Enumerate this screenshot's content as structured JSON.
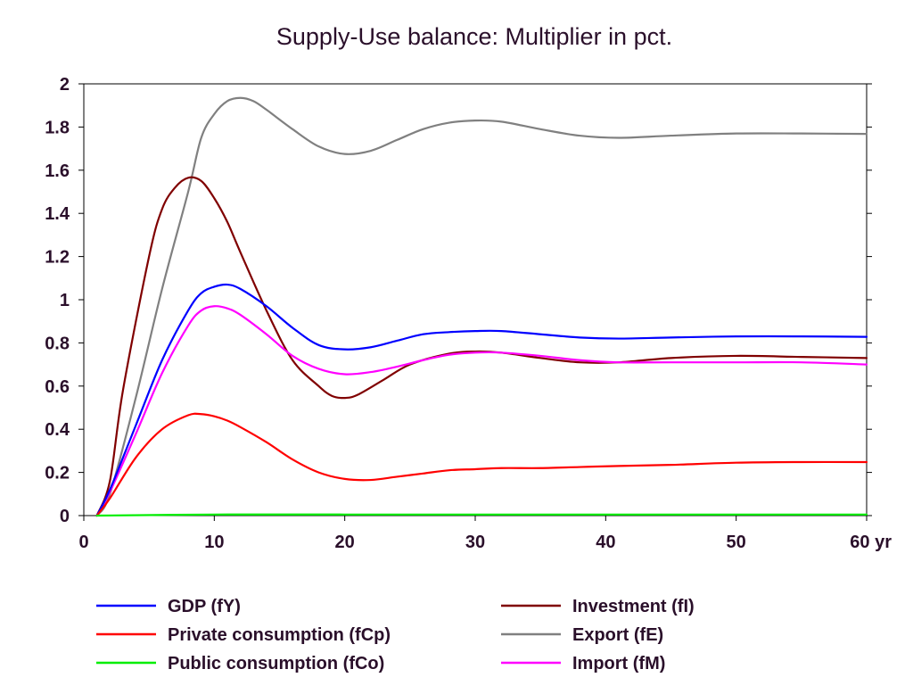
{
  "chart_data": {
    "type": "line",
    "title": "Supply-Use balance: Multiplier in pct.",
    "x_unit_label": "yr",
    "xlim": [
      0,
      60
    ],
    "ylim": [
      0,
      2
    ],
    "x_ticks": [
      0,
      10,
      20,
      30,
      40,
      50,
      60
    ],
    "x_tick_labels": [
      "0",
      "10",
      "20",
      "30",
      "40",
      "50",
      "60 yr"
    ],
    "y_ticks": [
      0,
      0.2,
      0.4,
      0.6,
      0.8,
      1,
      1.2,
      1.4,
      1.6,
      1.8,
      2
    ],
    "y_tick_labels": [
      "0",
      "0.2",
      "0.4",
      "0.6",
      "0.8",
      "1",
      "1.2",
      "1.4",
      "1.6",
      "1.8",
      "2"
    ],
    "grid": false,
    "legend_position": "bottom",
    "series": [
      {
        "name": "GDP (fY)",
        "color": "#0000ff",
        "x": [
          1,
          2,
          4,
          6,
          8,
          9,
          10,
          11,
          12,
          14,
          16,
          18,
          20,
          22,
          24,
          26,
          28,
          30,
          32,
          35,
          38,
          41,
          45,
          50,
          55,
          60
        ],
        "y": [
          0,
          0.12,
          0.42,
          0.72,
          0.95,
          1.03,
          1.06,
          1.07,
          1.05,
          0.97,
          0.87,
          0.79,
          0.77,
          0.78,
          0.81,
          0.84,
          0.85,
          0.855,
          0.855,
          0.84,
          0.825,
          0.82,
          0.825,
          0.83,
          0.83,
          0.828
        ]
      },
      {
        "name": "Private consumption (fCp)",
        "color": "#ff0000",
        "x": [
          1,
          2,
          4,
          6,
          8,
          9,
          10,
          11,
          12,
          14,
          16,
          18,
          20,
          22,
          24,
          26,
          28,
          30,
          32,
          35,
          38,
          41,
          45,
          50,
          55,
          60
        ],
        "y": [
          0,
          0.08,
          0.27,
          0.4,
          0.465,
          0.47,
          0.46,
          0.44,
          0.41,
          0.34,
          0.26,
          0.2,
          0.17,
          0.165,
          0.18,
          0.195,
          0.21,
          0.215,
          0.22,
          0.22,
          0.225,
          0.23,
          0.235,
          0.245,
          0.248,
          0.248
        ]
      },
      {
        "name": "Public consumption (fCo)",
        "color": "#00ee00",
        "x": [
          1,
          10,
          20,
          30,
          40,
          50,
          60
        ],
        "y": [
          0,
          0.005,
          0.005,
          0.005,
          0.005,
          0.005,
          0.005
        ]
      },
      {
        "name": "Investment (fI)",
        "color": "#800000",
        "x": [
          1,
          2,
          3,
          5,
          6,
          7,
          8,
          9,
          10,
          11,
          12,
          14,
          16,
          18,
          19,
          20,
          21,
          23,
          25,
          28,
          30,
          32,
          35,
          38,
          41,
          45,
          50,
          55,
          60
        ],
        "y": [
          0,
          0.16,
          0.58,
          1.2,
          1.42,
          1.52,
          1.565,
          1.55,
          1.47,
          1.36,
          1.22,
          0.95,
          0.72,
          0.6,
          0.555,
          0.545,
          0.56,
          0.63,
          0.7,
          0.75,
          0.76,
          0.755,
          0.73,
          0.71,
          0.71,
          0.73,
          0.74,
          0.735,
          0.73
        ]
      },
      {
        "name": "Export (fE)",
        "color": "#808080",
        "x": [
          1,
          2,
          4,
          6,
          8,
          9,
          10,
          11,
          12,
          13,
          14,
          16,
          18,
          20,
          22,
          24,
          26,
          28,
          30,
          32,
          35,
          38,
          41,
          45,
          50,
          55,
          60
        ],
        "y": [
          0,
          0.1,
          0.55,
          1.05,
          1.5,
          1.75,
          1.86,
          1.92,
          1.935,
          1.92,
          1.88,
          1.79,
          1.71,
          1.675,
          1.69,
          1.74,
          1.79,
          1.82,
          1.83,
          1.825,
          1.79,
          1.76,
          1.75,
          1.76,
          1.77,
          1.77,
          1.768
        ]
      },
      {
        "name": "Import (fM)",
        "color": "#ff00ff",
        "x": [
          1,
          2,
          4,
          6,
          8,
          9,
          10,
          11,
          12,
          14,
          16,
          18,
          20,
          22,
          24,
          26,
          28,
          30,
          32,
          35,
          38,
          41,
          45,
          50,
          55,
          60
        ],
        "y": [
          0,
          0.11,
          0.38,
          0.66,
          0.88,
          0.95,
          0.97,
          0.96,
          0.93,
          0.84,
          0.74,
          0.68,
          0.655,
          0.665,
          0.69,
          0.72,
          0.745,
          0.755,
          0.755,
          0.74,
          0.72,
          0.71,
          0.71,
          0.71,
          0.71,
          0.7
        ]
      }
    ]
  }
}
